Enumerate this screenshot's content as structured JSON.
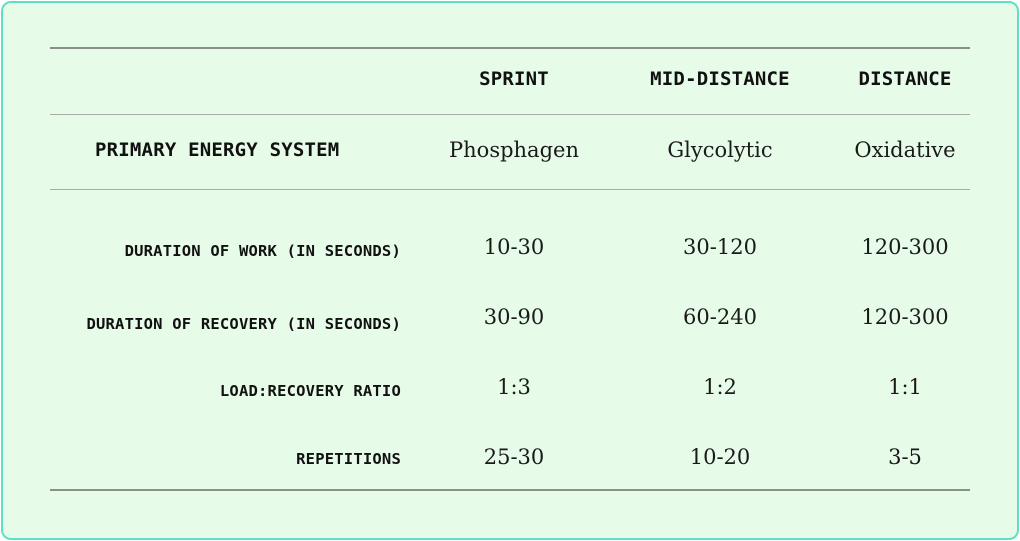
{
  "table": {
    "columns": [
      "SPRINT",
      "MID-DISTANCE",
      "DISTANCE"
    ],
    "primary_row": {
      "label": "PRIMARY ENERGY SYSTEM",
      "values": [
        "Phosphagen",
        "Glycolytic",
        "Oxidative"
      ]
    },
    "rows": [
      {
        "label": "DURATION OF WORK (IN SECONDS)",
        "values": [
          "10-30",
          "30-120",
          "120-300"
        ]
      },
      {
        "label": "DURATION OF RECOVERY (IN SECONDS)",
        "values": [
          "30-90",
          "60-240",
          "120-300"
        ]
      },
      {
        "label": "LOAD:RECOVERY RATIO",
        "values": [
          "1:3",
          "1:2",
          "1:1"
        ]
      },
      {
        "label": "REPETITIONS",
        "values": [
          "25-30",
          "10-20",
          "3-5"
        ]
      }
    ]
  },
  "colors": {
    "background": "#e6fbe8",
    "border": "#5fe0c4",
    "rule": "#8a8f8a"
  }
}
